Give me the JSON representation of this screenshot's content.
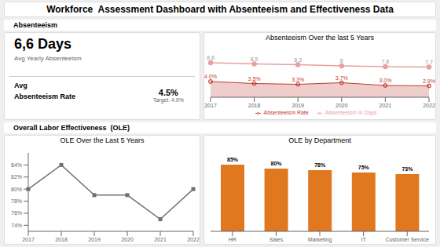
{
  "title": "Workforce  Assessment Dashboard with Absenteeism and Effectiveness Data",
  "annotations": [
    "Absenteeism",
    "6,6 Days",
    "Avg Yearly Absenteeism",
    "Avg\nAbsenteeism Rate",
    "4.5%",
    "Target: 4.9%",
    "Overall Labor Effectiveness  (OLE)"
  ],
  "chart_data": [
    {
      "type": "line",
      "title": "Absenteeism Over the last 5 Years",
      "categories": [
        "2017",
        "2018",
        "2019",
        "2020",
        "2021",
        "2022"
      ],
      "series": [
        {
          "name": "Absenteeism Rate",
          "type": "area",
          "color": "#C0392B",
          "marker": "circle",
          "values": [
            4.0,
            3.5,
            3.3,
            3.7,
            3.0,
            2.9
          ],
          "value_labels": [
            "4.0%",
            "3.5%",
            "3.3%",
            "3.7%",
            "3.0%",
            "2.9%"
          ]
        },
        {
          "name": "Absenteeism in Days",
          "type": "line",
          "color": "#E8A0A0",
          "marker": "circle",
          "values": [
            8.8,
            8.5,
            8.3,
            8.0,
            7.8,
            7.7
          ]
        }
      ],
      "ylim": [
        0,
        12
      ],
      "tick_labels": "x",
      "data_labels": true,
      "legend": "bottom"
    },
    {
      "type": "line",
      "title": "OLE Over the Last 5 Years",
      "categories": [
        "2017",
        "2018",
        "2019",
        "2020",
        "2021",
        "2022"
      ],
      "values": [
        80,
        84,
        79,
        79,
        75,
        80
      ],
      "color": "#707070",
      "marker": "square",
      "ylim": [
        73,
        86
      ],
      "yticks": [
        {
          "value": 74,
          "label": "74%"
        },
        {
          "value": 76,
          "label": "76%"
        },
        {
          "value": 78,
          "label": "78%"
        },
        {
          "value": 80,
          "label": "80%"
        },
        {
          "value": 82,
          "label": "82%"
        },
        {
          "value": 84,
          "label": "84%"
        }
      ]
    },
    {
      "type": "bar",
      "title": "OLE by Department",
      "categories": [
        "HR",
        "Sales",
        "Marketing",
        "IT",
        "Customer Service"
      ],
      "values": [
        85,
        80,
        78,
        75,
        73
      ],
      "value_labels": [
        "85%",
        "80%",
        "78%",
        "75%",
        "73%"
      ],
      "color": "#E07820",
      "ylim": [
        0,
        100
      ],
      "tick_labels": "x",
      "data_labels": true
    }
  ]
}
